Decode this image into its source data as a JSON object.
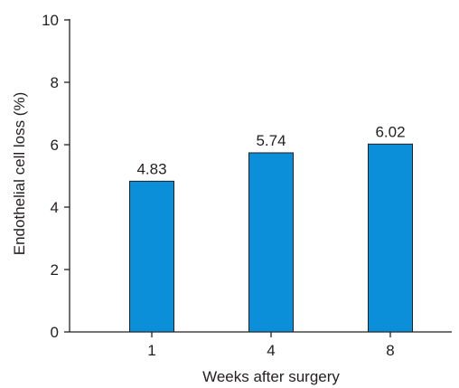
{
  "chart_data": {
    "type": "bar",
    "categories": [
      "1",
      "4",
      "8"
    ],
    "values": [
      4.83,
      5.74,
      6.02
    ],
    "data_labels": [
      "4.83",
      "5.74",
      "6.02"
    ],
    "xlabel": "Weeks after surgery",
    "ylabel": "Endothelial cell loss (%)",
    "ylim": [
      0,
      10
    ],
    "yticks": [
      "0",
      "2",
      "4",
      "6",
      "8",
      "10"
    ],
    "grid": false,
    "bar_color": "#0a8fd8"
  }
}
